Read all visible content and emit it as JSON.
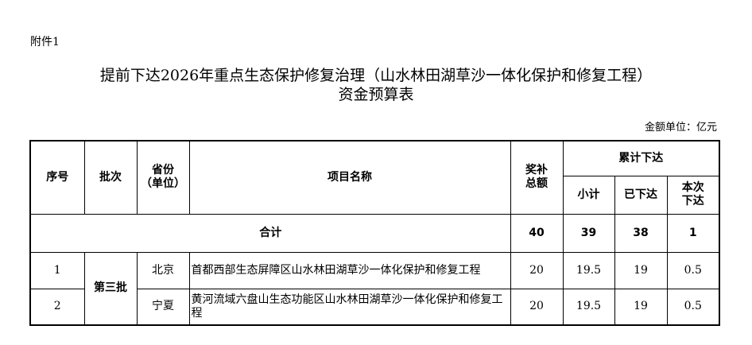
{
  "attachment_label": "附件1",
  "title_line1": "提前下达2026年重点生态保护修复治理（山水林田湖草沙一体化保护和修复工程）",
  "title_line2": "资金预算表",
  "unit_note": "金额单位：亿元",
  "table": {
    "headers": {
      "seq": "序号",
      "batch": "批次",
      "province": "省份",
      "province_sub": "（单位）",
      "project": "项目名称",
      "total": "奖补",
      "total_sub": "总额",
      "cumulative": "累计下达",
      "subtotal": "小计",
      "issued": "已下达",
      "current": "本次",
      "current_sub": "下达"
    },
    "total_row": {
      "label": "合计",
      "total": "40",
      "subtotal": "39",
      "issued": "38",
      "current": "1"
    },
    "rows": [
      {
        "seq": "1",
        "batch": "第三批",
        "province": "北京",
        "project": "首都西部生态屏障区山水林田湖草沙一体化保护和修复工程",
        "total": "20",
        "subtotal": "19.5",
        "issued": "19",
        "current": "0.5"
      },
      {
        "seq": "2",
        "province": "宁夏",
        "project": "黄河流域六盘山生态功能区山水林田湖草沙一体化保护和修复工程",
        "total": "20",
        "subtotal": "19.5",
        "issued": "19",
        "current": "0.5"
      }
    ]
  }
}
